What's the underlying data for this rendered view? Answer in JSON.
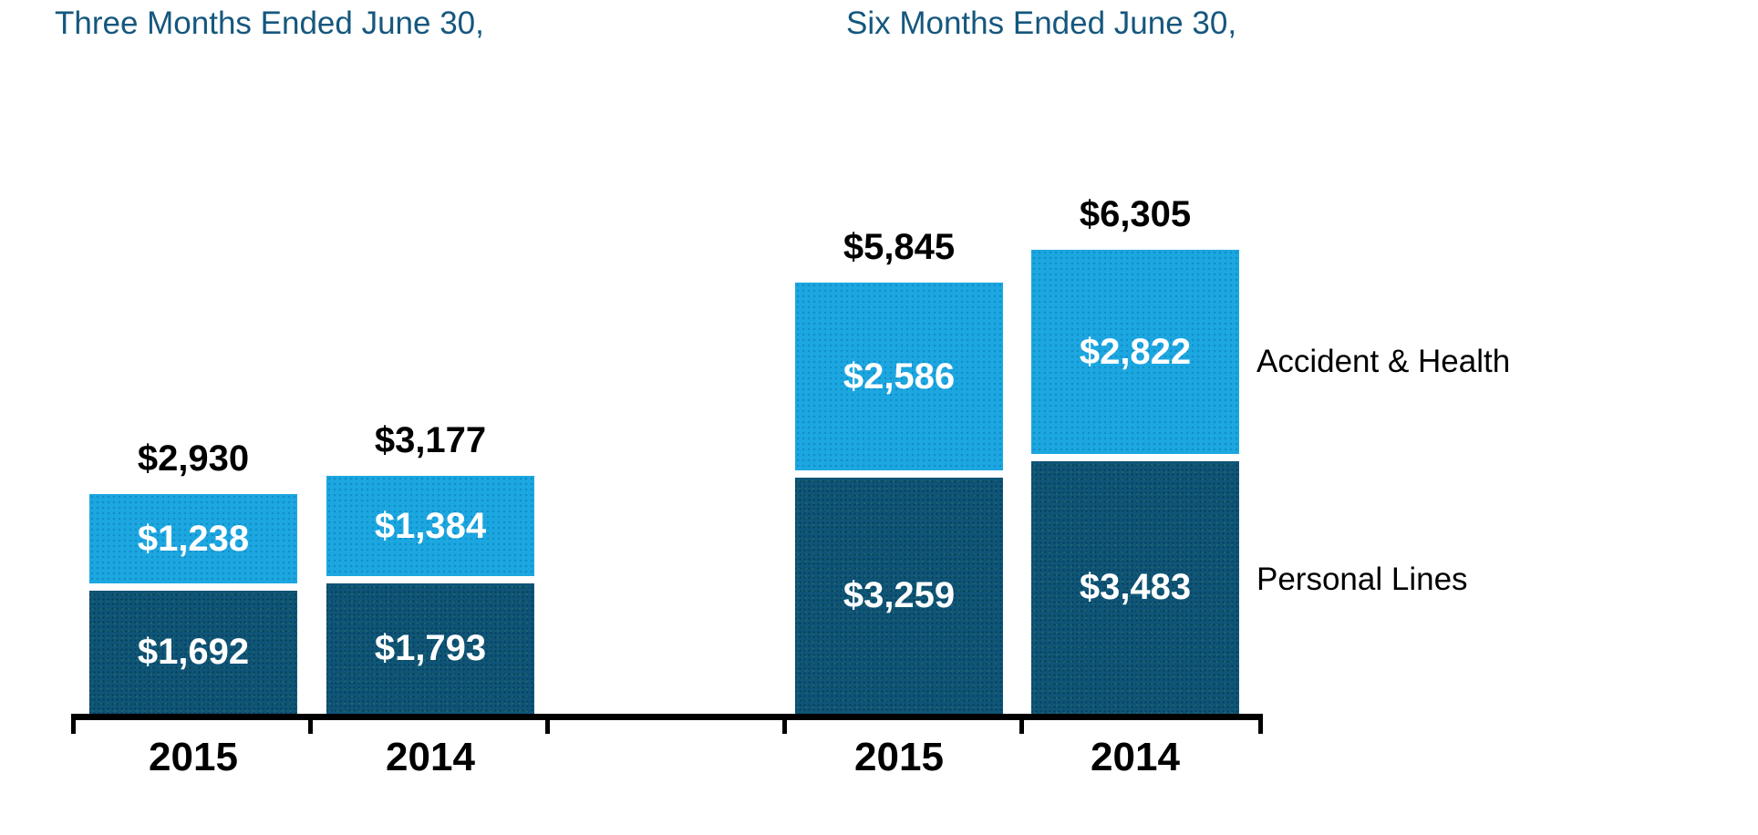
{
  "chart_data": {
    "type": "bar",
    "stacked": true,
    "legend_position": "right",
    "grid": false,
    "series": [
      {
        "name": "Accident & Health",
        "color": "#1CA7E1"
      },
      {
        "name": "Personal Lines",
        "color": "#0F5578"
      }
    ],
    "title_color": "#15577E",
    "groups": [
      {
        "title": "Three Months Ended June 30,",
        "categories": [
          "2015",
          "2014"
        ],
        "bars": [
          {
            "category": "2015",
            "total": 2930,
            "total_label": "$2,930",
            "accident_health": 1238,
            "accident_health_label": "$1,238",
            "personal_lines": 1692,
            "personal_lines_label": "$1,692"
          },
          {
            "category": "2014",
            "total": 3177,
            "total_label": "$3,177",
            "accident_health": 1384,
            "accident_health_label": "$1,384",
            "personal_lines": 1793,
            "personal_lines_label": "$1,793"
          }
        ]
      },
      {
        "title": "Six Months Ended June 30,",
        "categories": [
          "2015",
          "2014"
        ],
        "bars": [
          {
            "category": "2015",
            "total": 5845,
            "total_label": "$5,845",
            "accident_health": 2586,
            "accident_health_label": "$2,586",
            "personal_lines": 3259,
            "personal_lines_label": "$3,259"
          },
          {
            "category": "2014",
            "total": 6305,
            "total_label": "$6,305",
            "accident_health": 2822,
            "accident_health_label": "$2,822",
            "personal_lines": 3483,
            "personal_lines_label": "$3,483"
          }
        ]
      }
    ]
  }
}
